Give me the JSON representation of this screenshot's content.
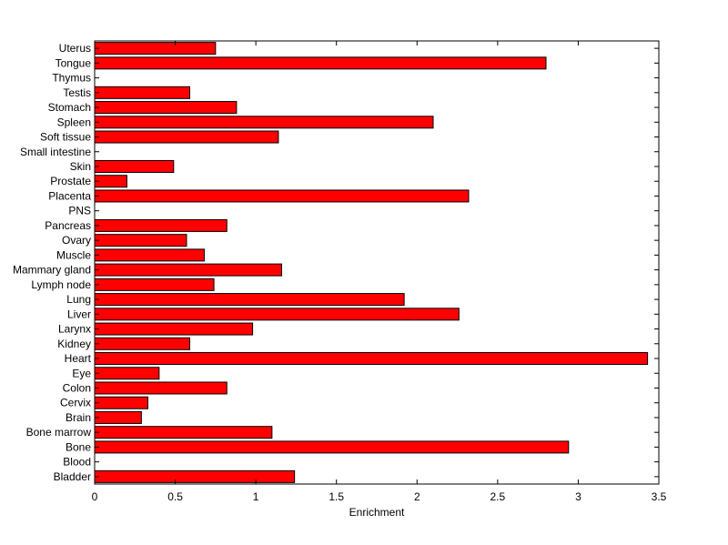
{
  "chart_data": {
    "type": "bar",
    "orientation": "horizontal",
    "title": "",
    "xlabel": "Enrichment",
    "ylabel": "",
    "xlim": [
      0,
      3.5
    ],
    "x_ticks": [
      "0",
      "0.5",
      "1",
      "1.5",
      "2",
      "2.5",
      "3",
      "3.5"
    ],
    "grid": false,
    "legend": "none",
    "bar_color": "#ff0000",
    "categories": [
      "Bladder",
      "Blood",
      "Bone",
      "Bone marrow",
      "Brain",
      "Cervix",
      "Colon",
      "Eye",
      "Heart",
      "Kidney",
      "Larynx",
      "Liver",
      "Lung",
      "Lymph node",
      "Mammary gland",
      "Muscle",
      "Ovary",
      "Pancreas",
      "PNS",
      "Placenta",
      "Prostate",
      "Skin",
      "Small intestine",
      "Soft tissue",
      "Spleen",
      "Stomach",
      "Testis",
      "Thymus",
      "Tongue",
      "Uterus"
    ],
    "values": [
      1.24,
      0,
      2.94,
      1.1,
      0.29,
      0.33,
      0.82,
      0.4,
      3.43,
      0.59,
      0.98,
      2.26,
      1.92,
      0.74,
      1.16,
      0.68,
      0.57,
      0.82,
      0,
      2.32,
      0.2,
      0.49,
      0,
      1.14,
      2.1,
      0.88,
      0.59,
      0,
      2.8,
      0.75
    ]
  }
}
